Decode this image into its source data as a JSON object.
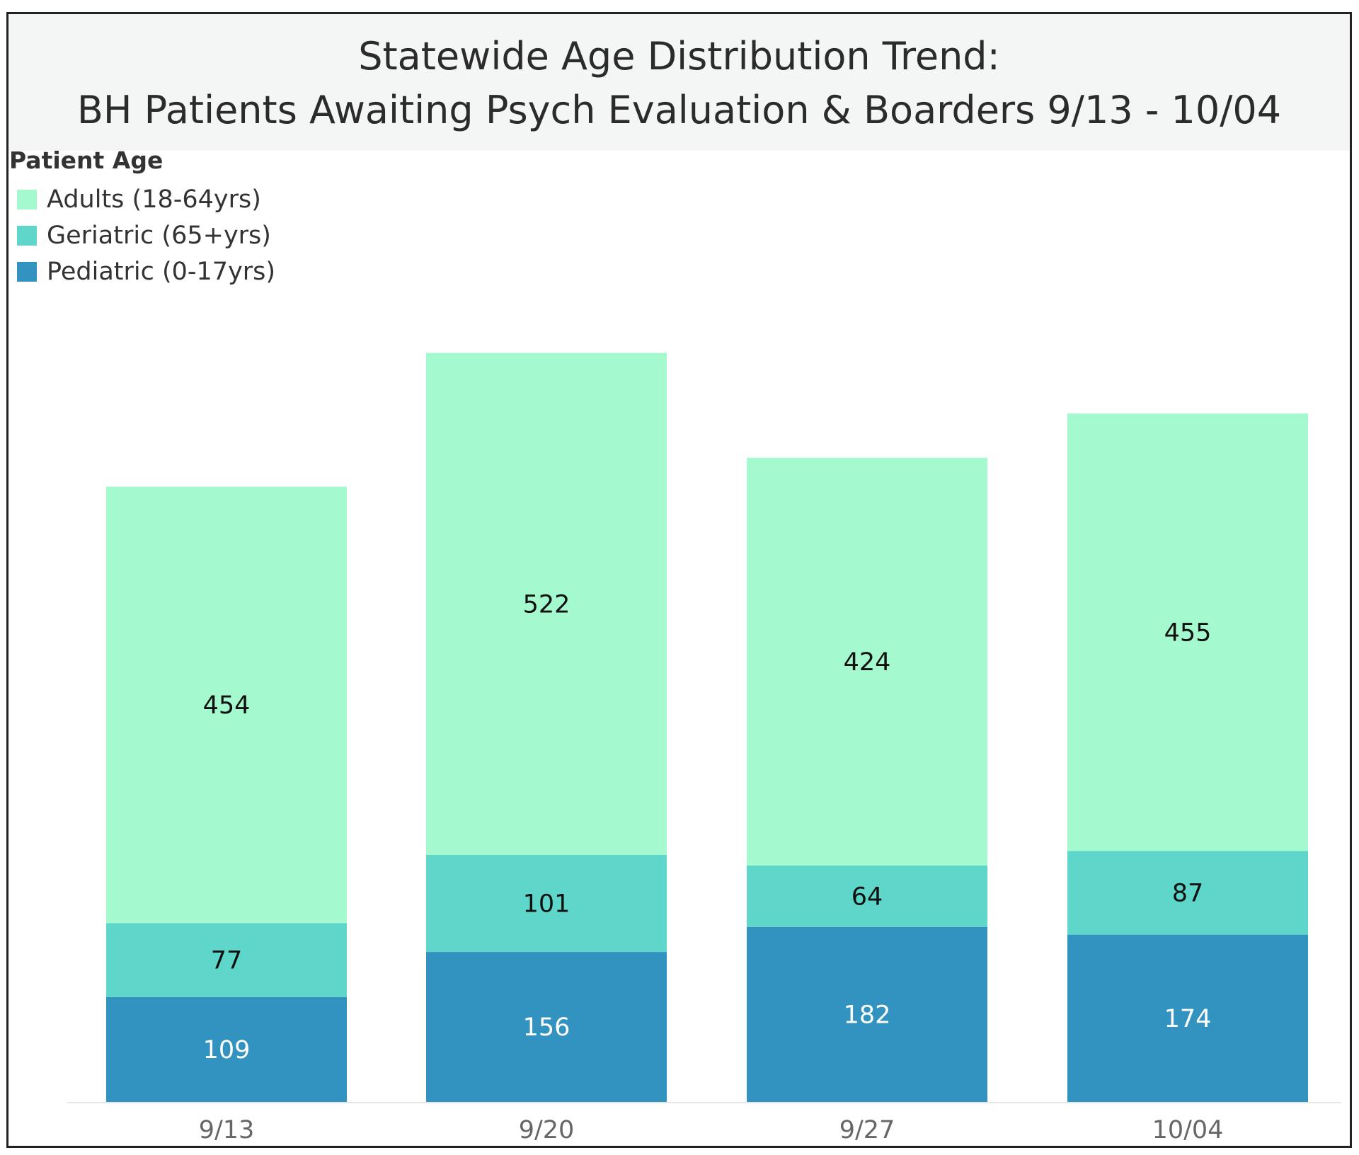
{
  "chart_data": {
    "type": "bar",
    "stacked": true,
    "title_lines": [
      "Statewide Age Distribution Trend:",
      "BH Patients Awaiting Psych Evaluation & Boarders 9/13 - 10/04"
    ],
    "categories": [
      "9/13",
      "9/20",
      "9/27",
      "10/04"
    ],
    "legend_title": "Patient Age",
    "legend_order": [
      0,
      1,
      2
    ],
    "series": [
      {
        "name": "Adults (18-64yrs)",
        "color": "#a4f9ce",
        "label_color": "#111111",
        "values": [
          454,
          522,
          424,
          455
        ]
      },
      {
        "name": "Geriatric (65+yrs)",
        "color": "#5ed6c9",
        "label_color": "#111111",
        "values": [
          77,
          101,
          64,
          87
        ]
      },
      {
        "name": "Pediatric (0-17yrs)",
        "color": "#3292c0",
        "label_color": "#ffffff",
        "values": [
          109,
          156,
          182,
          174
        ]
      }
    ],
    "stack_order_bottom_to_top": [
      2,
      1,
      0
    ],
    "xlabel": "",
    "ylabel": "",
    "ylim": [
      0,
      800
    ],
    "grid": false,
    "legend_position": "top-left"
  }
}
